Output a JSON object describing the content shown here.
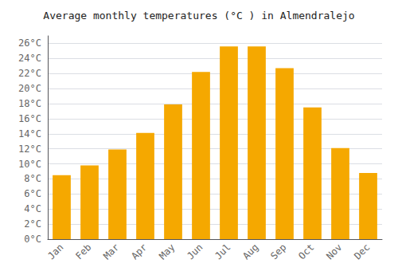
{
  "chart_data": {
    "type": "bar",
    "title": "Average monthly temperatures (°C ) in Almendralejo",
    "categories": [
      "Jan",
      "Feb",
      "Mar",
      "Apr",
      "May",
      "Jun",
      "Jul",
      "Aug",
      "Sep",
      "Oct",
      "Nov",
      "Dec"
    ],
    "values": [
      8.5,
      9.8,
      11.9,
      14.1,
      17.9,
      22.2,
      25.6,
      25.6,
      22.7,
      17.5,
      12.1,
      8.8
    ],
    "color": "#F5A800",
    "ylim": [
      0,
      27
    ],
    "yticks": [
      {
        "value": 0,
        "label": "0°C"
      },
      {
        "value": 2,
        "label": "2°C"
      },
      {
        "value": 4,
        "label": "4°C"
      },
      {
        "value": 6,
        "label": "6°C"
      },
      {
        "value": 8,
        "label": "8°C"
      },
      {
        "value": 10,
        "label": "10°C"
      },
      {
        "value": 12,
        "label": "12°C"
      },
      {
        "value": 14,
        "label": "14°C"
      },
      {
        "value": 16,
        "label": "16°C"
      },
      {
        "value": 18,
        "label": "18°C"
      },
      {
        "value": 20,
        "label": "20°C"
      },
      {
        "value": 22,
        "label": "22°C"
      },
      {
        "value": 24,
        "label": "24°C"
      },
      {
        "value": 26,
        "label": "26°C"
      }
    ],
    "grid": true
  }
}
